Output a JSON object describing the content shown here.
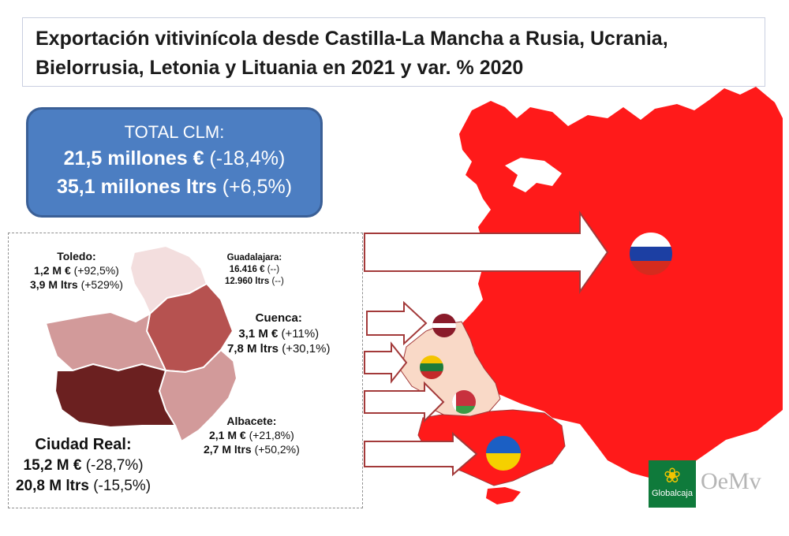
{
  "title": {
    "line1": "Exportación vitivinícola desde Castilla-La Mancha a Rusia, Ucrania,",
    "line2": "Bielorrusia, Letonia y Lituania en 2021 y var. % 2020"
  },
  "total": {
    "heading": "TOTAL CLM:",
    "value_eur": "21,5 millones €",
    "var_eur": "(-18,4%)",
    "value_ltrs": "35,1 millones ltrs",
    "var_ltrs": "(+6,5%)"
  },
  "provinces": {
    "toledo": {
      "name": "Toledo:",
      "eur": "1,2 M €",
      "eur_var": "(+92,5%)",
      "ltrs": "3,9 M ltrs",
      "ltrs_var": "(+529%)"
    },
    "guadalajara": {
      "name": "Guadalajara:",
      "eur": "16.416 €",
      "eur_var": "(--)",
      "ltrs": "12.960 ltrs",
      "ltrs_var": "(--)"
    },
    "cuenca": {
      "name": "Cuenca:",
      "eur": "3,1 M €",
      "eur_var": "(+11%)",
      "ltrs": "7,8 M ltrs",
      "ltrs_var": "(+30,1%)"
    },
    "albacete": {
      "name": "Albacete:",
      "eur": "2,1 M €",
      "eur_var": "(+21,8%)",
      "ltrs": "2,7 M ltrs",
      "ltrs_var": "(+50,2%)"
    },
    "ciudad_real": {
      "name": "Ciudad Real:",
      "eur": "15,2 M €",
      "eur_var": "(-28,7%)",
      "ltrs": "20,8 M ltrs",
      "ltrs_var": "(-15,5%)"
    }
  },
  "colors": {
    "russia": "#ff1a1a",
    "neighbors": "#f9d9c7",
    "ukraine": "#ff1a1a",
    "toledo": "#d29a9a",
    "guadalajara": "#f3dede",
    "cuenca": "#b65250",
    "albacete": "#d29a9a",
    "ciudad_real": "#6b2020",
    "total_box": "#4c7ec2",
    "arrow_fill": "#ffffff",
    "arrow_stroke": "#a33a3a"
  },
  "flags": [
    "Rusia",
    "Letonia",
    "Lituania",
    "Bielorrusia",
    "Ucrania"
  ],
  "logos": {
    "globalcaja": "Globalcaja",
    "oemv": "OeMv"
  }
}
